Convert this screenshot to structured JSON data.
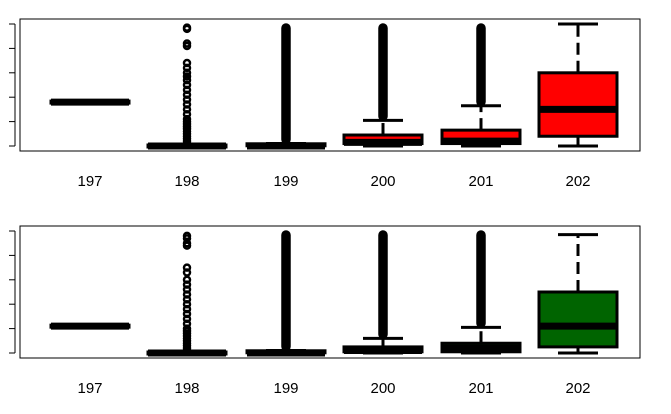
{
  "chart_data": [
    {
      "type": "box",
      "categories": [
        "197",
        "198",
        "199",
        "200",
        "201",
        "202"
      ],
      "fill_color": "#ff0000",
      "ylim": [
        0,
        1
      ],
      "y_ticks": [
        0.0,
        0.2,
        0.4,
        0.6,
        0.8,
        1.0
      ],
      "y_tick_labels_shown": false,
      "boxes": [
        {
          "category": "197",
          "min": 0.36,
          "q1": 0.36,
          "median": 0.36,
          "q3": 0.36,
          "max": 0.36,
          "outliers": []
        },
        {
          "category": "198",
          "min": 0.0,
          "q1": 0.0,
          "median": 0.0,
          "q3": 0.0,
          "max": 0.0,
          "outliers": [
            0.02,
            0.04,
            0.06,
            0.08,
            0.1,
            0.12,
            0.14,
            0.16,
            0.18,
            0.2,
            0.22,
            0.26,
            0.3,
            0.34,
            0.38,
            0.42,
            0.46,
            0.5,
            0.54,
            0.57,
            0.6,
            0.64,
            0.68,
            0.82,
            0.84,
            0.96,
            0.97
          ]
        },
        {
          "category": "199",
          "min": 0.0,
          "q1": 0.0,
          "median": 0.0,
          "q3": 0.01,
          "max": 0.02,
          "outliers_range": [
            0.02,
            1.0
          ]
        },
        {
          "category": "200",
          "min": 0.0,
          "q1": 0.02,
          "median": 0.03,
          "q3": 0.09,
          "max": 0.21,
          "outliers_range": [
            0.21,
            1.0
          ]
        },
        {
          "category": "201",
          "min": 0.0,
          "q1": 0.02,
          "median": 0.04,
          "q3": 0.13,
          "max": 0.33,
          "outliers_range": [
            0.33,
            1.0
          ]
        },
        {
          "category": "202",
          "min": 0.0,
          "q1": 0.08,
          "median": 0.3,
          "q3": 0.6,
          "max": 1.0,
          "outliers": []
        }
      ]
    },
    {
      "type": "box",
      "categories": [
        "197",
        "198",
        "199",
        "200",
        "201",
        "202"
      ],
      "fill_color": "#006400",
      "ylim": [
        0,
        1
      ],
      "y_ticks": [
        0.0,
        0.2,
        0.4,
        0.6,
        0.8,
        1.0
      ],
      "y_tick_labels_shown": false,
      "boxes": [
        {
          "category": "197",
          "min": 0.22,
          "q1": 0.22,
          "median": 0.22,
          "q3": 0.22,
          "max": 0.22,
          "outliers": []
        },
        {
          "category": "198",
          "min": 0.0,
          "q1": 0.0,
          "median": 0.0,
          "q3": 0.0,
          "max": 0.0,
          "outliers": [
            0.02,
            0.04,
            0.06,
            0.08,
            0.1,
            0.12,
            0.14,
            0.16,
            0.18,
            0.2,
            0.24,
            0.28,
            0.32,
            0.36,
            0.4,
            0.44,
            0.48,
            0.52,
            0.56,
            0.6,
            0.66,
            0.7,
            0.88,
            0.9,
            0.94,
            0.96
          ]
        },
        {
          "category": "199",
          "min": 0.0,
          "q1": 0.0,
          "median": 0.0,
          "q3": 0.01,
          "max": 0.02,
          "outliers_range": [
            0.02,
            1.0
          ]
        },
        {
          "category": "200",
          "min": 0.0,
          "q1": 0.01,
          "median": 0.02,
          "q3": 0.05,
          "max": 0.12,
          "outliers_range": [
            0.12,
            1.0
          ]
        },
        {
          "category": "201",
          "min": 0.0,
          "q1": 0.01,
          "median": 0.04,
          "q3": 0.08,
          "max": 0.21,
          "outliers_range": [
            0.21,
            1.0
          ]
        },
        {
          "category": "202",
          "min": 0.0,
          "q1": 0.05,
          "median": 0.22,
          "q3": 0.5,
          "max": 0.97,
          "outliers": []
        }
      ]
    }
  ]
}
